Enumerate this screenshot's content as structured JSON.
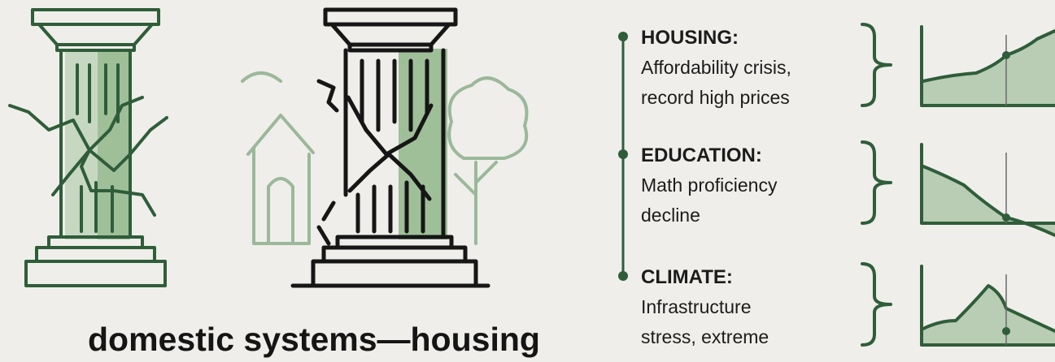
{
  "caption": "domestic systems—housing",
  "timeline": [
    {
      "title": "HOUSING:",
      "lines": [
        "Affordability crisis,",
        "record high prices"
      ]
    },
    {
      "title": "EDUCATION:",
      "lines": [
        "Math proficiency",
        "decline"
      ]
    },
    {
      "title": "CLIMATE:",
      "lines": [
        "Infrastructure",
        "stress, extreme"
      ]
    }
  ]
}
